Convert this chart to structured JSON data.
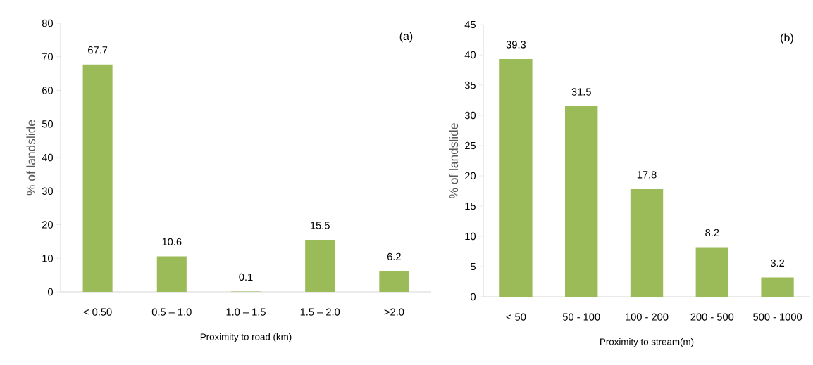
{
  "chart_data": [
    {
      "type": "bar",
      "categories": [
        "< 0.50",
        "0.5 – 1.0",
        "1.0 – 1.5",
        "1.5 – 2.0",
        ">2.0"
      ],
      "values": [
        67.7,
        10.6,
        0.1,
        15.5,
        6.2
      ],
      "color": "#9bbb59",
      "xlabel": "Proximity to road (km)",
      "ylabel": "% of landslide",
      "ylim": [
        0,
        80
      ],
      "yticks": [
        0,
        10,
        20,
        30,
        40,
        50,
        60,
        70,
        80
      ],
      "data_labels": true,
      "annotations": [
        "(a)"
      ]
    },
    {
      "type": "bar",
      "categories": [
        "< 50",
        "50 - 100",
        "100 - 200",
        "200 - 500",
        "500 - 1000"
      ],
      "values": [
        39.3,
        31.5,
        17.8,
        8.2,
        3.2
      ],
      "color": "#9bbb59",
      "xlabel": "Proximity to stream(m)",
      "ylabel": "% of landslide",
      "ylim": [
        0,
        45
      ],
      "yticks": [
        0,
        5,
        10,
        15,
        20,
        25,
        30,
        35,
        40,
        45
      ],
      "data_labels": true,
      "annotations": [
        "(b)"
      ]
    }
  ]
}
